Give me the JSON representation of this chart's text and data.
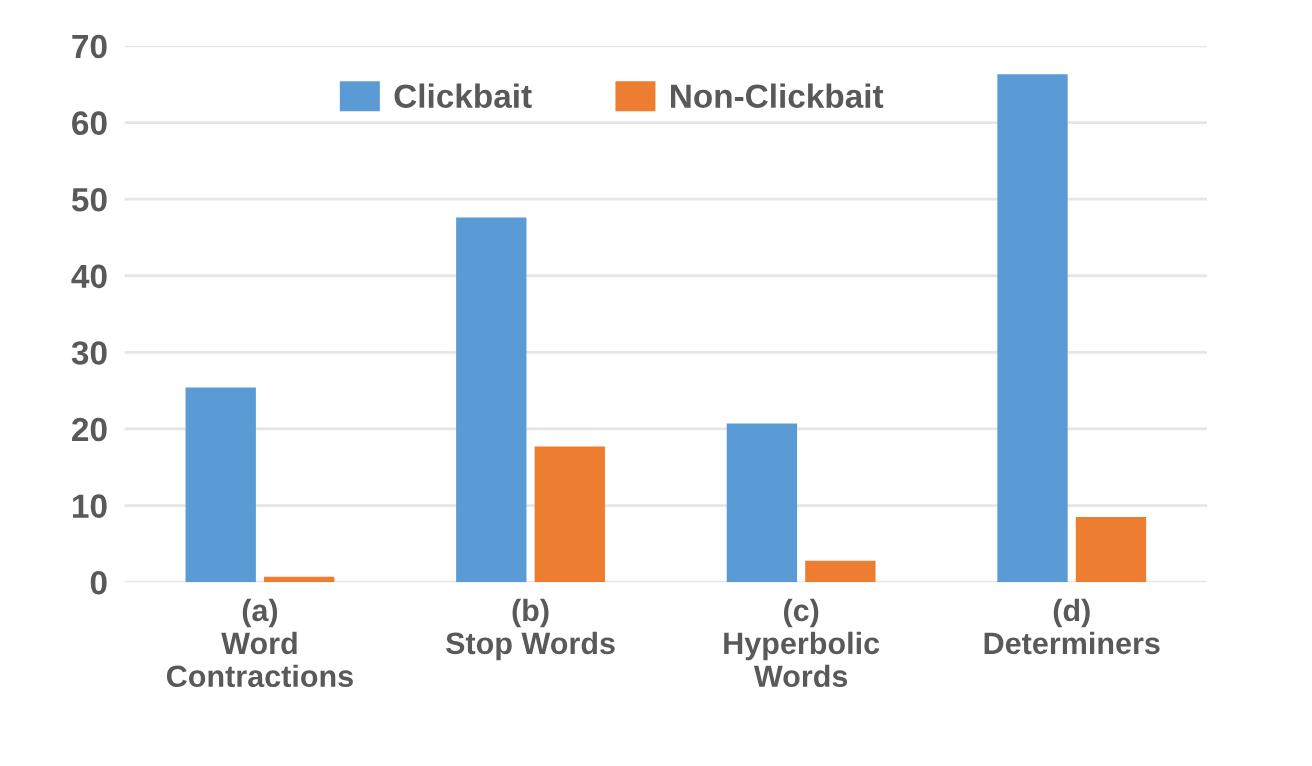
{
  "chart_data": {
    "type": "bar",
    "categories": [
      "(a)\nWord\nContractions",
      "(b)\nStop Words",
      "(c)\nHyperbolic\nWords",
      "(d)\nDeterminers"
    ],
    "series": [
      {
        "name": "Clickbait",
        "color": "#5b9bd5",
        "values": [
          25.4,
          47.6,
          20.7,
          66.3
        ]
      },
      {
        "name": "Non-Clickbait",
        "color": "#ed7d31",
        "values": [
          0.7,
          17.7,
          2.8,
          8.5
        ]
      }
    ],
    "ylim": [
      0,
      70
    ],
    "yticks": [
      0,
      10,
      20,
      30,
      40,
      50,
      60,
      70
    ],
    "grid": "y",
    "legend": "top"
  }
}
